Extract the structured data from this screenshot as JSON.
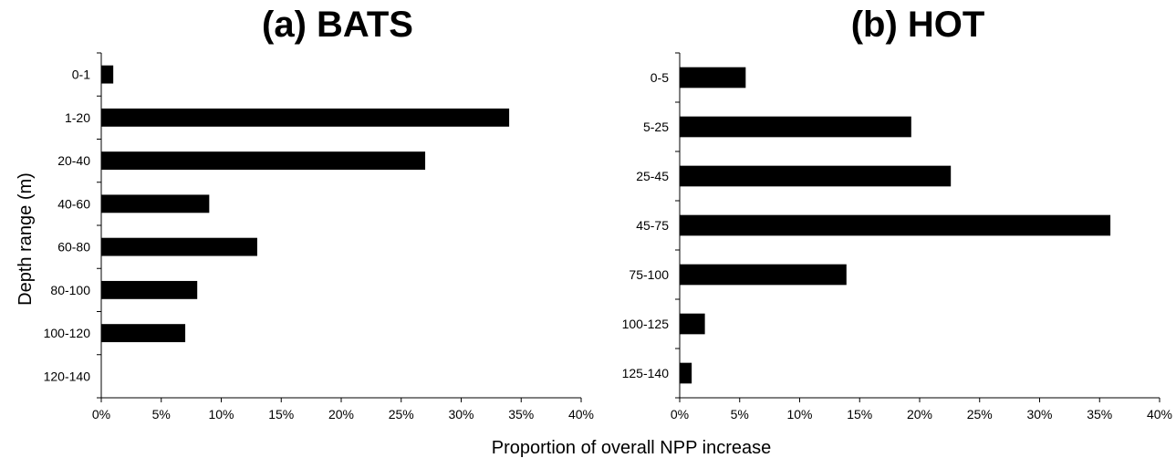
{
  "figure": {
    "ylabel": "Depth range  (m)",
    "xlabel": "Proportion of overall NPP increase"
  },
  "colors": {
    "bar": "#000000",
    "axis": "#000000",
    "background": "#ffffff"
  },
  "chart_data": [
    {
      "type": "bar",
      "orientation": "horizontal",
      "title": "(a) BATS",
      "categories": [
        "0-1",
        "1-20",
        "20-40",
        "40-60",
        "60-80",
        "80-100",
        "100-120",
        "120-140"
      ],
      "values": [
        1,
        34,
        27,
        9,
        13,
        8,
        7,
        0
      ],
      "value_unit": "%",
      "xlim": [
        0,
        40
      ],
      "xticks": [
        "0%",
        "5%",
        "10%",
        "15%",
        "20%",
        "25%",
        "30%",
        "35%",
        "40%"
      ],
      "ylabel": "Depth range  (m)",
      "grid": false,
      "legend": "none"
    },
    {
      "type": "bar",
      "orientation": "horizontal",
      "title": "(b) HOT",
      "categories": [
        "0-5",
        "5-25",
        "25-45",
        "45-75",
        "75-100",
        "100-125",
        "125-140"
      ],
      "values": [
        5.5,
        19.3,
        22.6,
        35.9,
        13.9,
        2.1,
        1.0
      ],
      "value_unit": "%",
      "xlim": [
        0,
        40
      ],
      "xticks": [
        "0%",
        "5%",
        "10%",
        "15%",
        "20%",
        "25%",
        "30%",
        "35%",
        "40%"
      ],
      "ylabel": "",
      "grid": false,
      "legend": "none"
    }
  ]
}
